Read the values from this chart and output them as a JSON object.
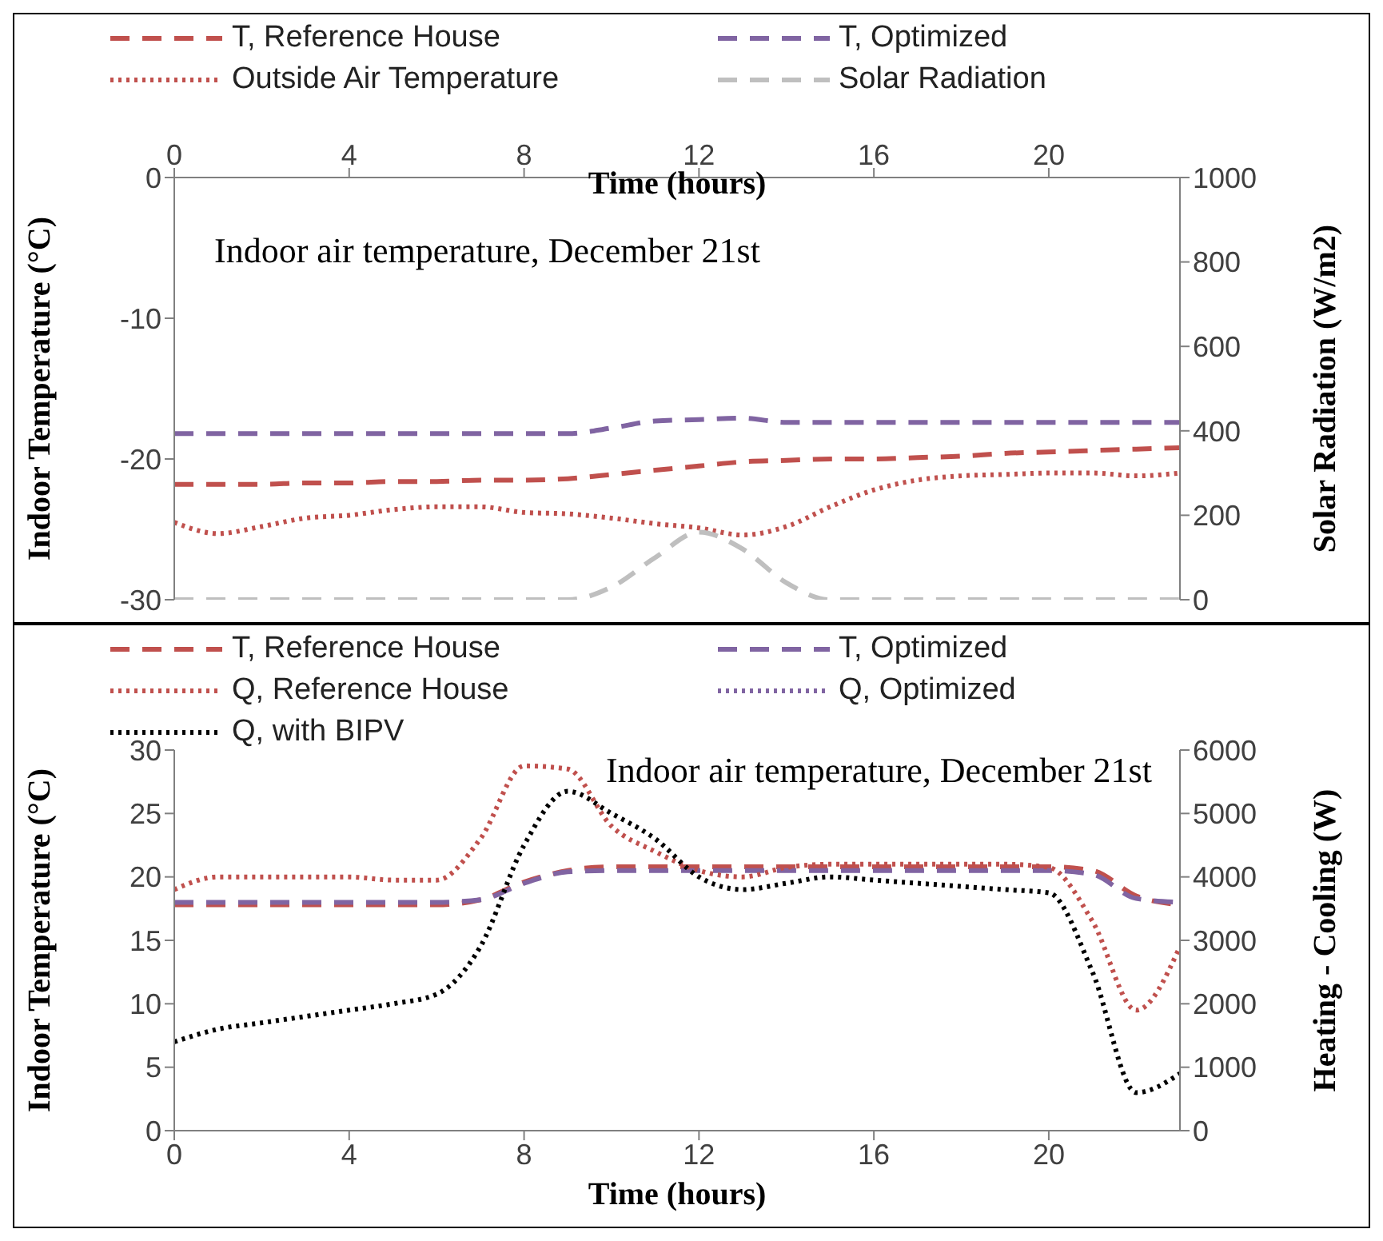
{
  "chart_data": [
    {
      "type": "line",
      "xlabel": "Time (hours)",
      "ylabel": "Indoor Temperature (°C)",
      "y2label": "Solar Radiation  (W/m2)",
      "annotations": [
        "Indoor air temperature, December 21st"
      ],
      "x": [
        0,
        1,
        2,
        3,
        4,
        5,
        6,
        7,
        8,
        9,
        10,
        11,
        12,
        13,
        14,
        15,
        16,
        17,
        18,
        19,
        20,
        21,
        22,
        23
      ],
      "xlim": [
        0,
        23
      ],
      "xticks": [
        0,
        4,
        8,
        12,
        16,
        20
      ],
      "ylim": [
        -30,
        0
      ],
      "yticks": [
        -30,
        -20,
        -10,
        0
      ],
      "y2lim": [
        0,
        1000
      ],
      "y2ticks": [
        0,
        200,
        400,
        600,
        800,
        1000
      ],
      "legend": "top",
      "marker": "none",
      "series": [
        {
          "name": "T, Reference House",
          "color": "#c0504d",
          "line_style": "dashed",
          "values": [
            -21.8,
            -21.8,
            -21.8,
            -21.7,
            -21.7,
            -21.6,
            -21.6,
            -21.5,
            -21.5,
            -21.4,
            -21.1,
            -20.8,
            -20.5,
            -20.2,
            -20.1,
            -20,
            -20,
            -19.9,
            -19.8,
            -19.6,
            -19.5,
            -19.4,
            -19.3,
            -19.2
          ]
        },
        {
          "name": "T, Optimized",
          "color": "#8064a2",
          "line_style": "dashed",
          "values": [
            -18.2,
            -18.2,
            -18.2,
            -18.2,
            -18.2,
            -18.2,
            -18.2,
            -18.2,
            -18.2,
            -18.2,
            -17.8,
            -17.3,
            -17.2,
            -17.1,
            -17.4,
            -17.4,
            -17.4,
            -17.4,
            -17.4,
            -17.4,
            -17.4,
            -17.4,
            -17.4,
            -17.4
          ]
        },
        {
          "name": "Outside Air Temperature",
          "color": "#c0504d",
          "line_style": "dotted",
          "values": [
            -24.5,
            -25.3,
            -24.8,
            -24.2,
            -24,
            -23.6,
            -23.4,
            -23.4,
            -23.8,
            -23.9,
            -24.2,
            -24.6,
            -24.9,
            -25.4,
            -24.8,
            -23.4,
            -22.2,
            -21.5,
            -21.2,
            -21.1,
            -21,
            -21,
            -21.2,
            -21
          ]
        },
        {
          "name": "Solar Radiation",
          "color": "#bfbfbf",
          "line_style": "dashed",
          "axis": "y2",
          "values": [
            0,
            0,
            0,
            0,
            0,
            0,
            0,
            0,
            0,
            0,
            30,
            100,
            160,
            120,
            40,
            0,
            0,
            0,
            0,
            0,
            0,
            0,
            0,
            0
          ]
        }
      ]
    },
    {
      "type": "line",
      "xlabel": "Time (hours)",
      "ylabel": "Indoor Temperature (°C)",
      "y2label": "Heating - Cooling  (W)",
      "annotations": [
        "Indoor air temperature, December 21st"
      ],
      "x": [
        0,
        1,
        2,
        3,
        4,
        5,
        6,
        7,
        8,
        9,
        10,
        11,
        12,
        13,
        14,
        15,
        16,
        17,
        18,
        19,
        20,
        21,
        22,
        23
      ],
      "xlim": [
        0,
        23
      ],
      "xticks": [
        0,
        4,
        8,
        12,
        16,
        20
      ],
      "ylim": [
        0,
        30
      ],
      "yticks": [
        0,
        5,
        10,
        15,
        20,
        25,
        30
      ],
      "y2lim": [
        0,
        6000
      ],
      "y2ticks": [
        0,
        1000,
        2000,
        3000,
        4000,
        5000,
        6000
      ],
      "legend": "top",
      "marker": "none",
      "series": [
        {
          "name": "T, Reference House",
          "color": "#c0504d",
          "line_style": "dashed",
          "values": [
            17.8,
            17.8,
            17.8,
            17.8,
            17.8,
            17.8,
            17.8,
            18.2,
            19.6,
            20.5,
            20.8,
            20.8,
            20.8,
            20.8,
            20.8,
            20.8,
            20.8,
            20.8,
            20.8,
            20.8,
            20.8,
            20.5,
            18.5,
            17.8
          ]
        },
        {
          "name": "T, Optimized",
          "color": "#8064a2",
          "line_style": "dashed",
          "values": [
            18,
            18,
            18,
            18,
            18,
            18,
            18,
            18.2,
            19.5,
            20.4,
            20.5,
            20.5,
            20.5,
            20.5,
            20.5,
            20.5,
            20.5,
            20.5,
            20.5,
            20.5,
            20.5,
            20.2,
            18.3,
            18
          ]
        },
        {
          "name": "Q, Reference House",
          "color": "#c0504d",
          "line_style": "dotted",
          "axis": "y2",
          "values": [
            3800,
            4000,
            4000,
            4000,
            4000,
            3950,
            3950,
            4600,
            5750,
            5700,
            4800,
            4400,
            4100,
            4000,
            4150,
            4200,
            4200,
            4200,
            4200,
            4200,
            4150,
            3300,
            1900,
            2900
          ]
        },
        {
          "name": "Q, Optimized",
          "color": "#8064a2",
          "line_style": "dotted",
          "axis": "y2",
          "values": [
            null,
            null,
            null,
            null,
            null,
            null,
            null,
            null,
            null,
            null,
            null,
            null,
            null,
            null,
            null,
            null,
            null,
            null,
            null,
            null,
            null,
            null,
            null,
            null
          ]
        },
        {
          "name": "Q, with BIPV",
          "color": "#000000",
          "line_style": "dotted",
          "axis": "y2",
          "values": [
            1400,
            1600,
            1700,
            1800,
            1900,
            2000,
            2150,
            2900,
            4500,
            5350,
            5000,
            4600,
            4000,
            3800,
            3900,
            4000,
            3950,
            3900,
            3850,
            3800,
            3750,
            2500,
            600,
            900
          ]
        }
      ]
    }
  ]
}
